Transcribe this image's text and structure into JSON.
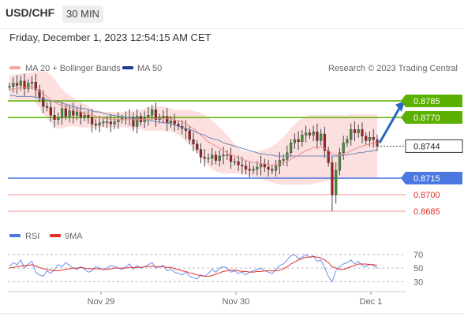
{
  "header": {
    "symbol": "USD/CHF",
    "timeframe": "30 MIN",
    "datetime": "Friday, December 1, 2023 12:54:15 AM CET"
  },
  "legend": {
    "ma20_bb": "MA 20 + Bollinger Bands",
    "ma50": "MA 50",
    "rsi": "RSI",
    "ma9": "9MA",
    "credit": "Research © 2023 Trading Central"
  },
  "colors": {
    "green": "#5cb000",
    "blue": "#4a78e0",
    "red": "#e03030",
    "salmon": "#f4a7a7",
    "band_fill": "#fbd5d5",
    "navy": "#1a3d8f",
    "candle_up": "#4a8f3a",
    "candle_down": "#a02020"
  },
  "chart_data": {
    "type": "candlestick",
    "symbol": "USD/CHF",
    "timeframe": "30 MIN",
    "xticks": [
      "Nov 29",
      "Nov 30",
      "Dec 1"
    ],
    "ylim": [
      0.8675,
      0.8805
    ],
    "current_price": 0.8744,
    "levels": [
      {
        "label": "0.8785",
        "value": 0.8785,
        "color": "#5cb000",
        "kind": "resistance"
      },
      {
        "label": "0.8770",
        "value": 0.877,
        "color": "#5cb000",
        "kind": "resistance"
      },
      {
        "label": "0.8715",
        "value": 0.8715,
        "color": "#4a78e0",
        "kind": "support"
      },
      {
        "label": "0.8700",
        "value": 0.87,
        "color": "#e03030",
        "kind": "support"
      },
      {
        "label": "0.8685",
        "value": 0.8685,
        "color": "#e03030",
        "kind": "support"
      }
    ],
    "price_series": [
      0.8798,
      0.8801,
      0.8799,
      0.8803,
      0.8796,
      0.8801,
      0.8802,
      0.8795,
      0.8788,
      0.878,
      0.8779,
      0.8772,
      0.8768,
      0.877,
      0.8778,
      0.8771,
      0.8776,
      0.8772,
      0.8775,
      0.877,
      0.8772,
      0.877,
      0.8764,
      0.8763,
      0.8765,
      0.8766,
      0.8766,
      0.8764,
      0.8766,
      0.8768,
      0.8769,
      0.877,
      0.877,
      0.8762,
      0.8771,
      0.8766,
      0.877,
      0.8772,
      0.8777,
      0.8768,
      0.877,
      0.8771,
      0.8765,
      0.8767,
      0.8764,
      0.8762,
      0.876,
      0.8758,
      0.875,
      0.8746,
      0.8741,
      0.8734,
      0.8733,
      0.8733,
      0.8736,
      0.8731,
      0.8735,
      0.8736,
      0.8736,
      0.873,
      0.873,
      0.8727,
      0.8726,
      0.8723,
      0.8722,
      0.8723,
      0.8725,
      0.8728,
      0.8725,
      0.8723,
      0.8722,
      0.8726,
      0.8731,
      0.8732,
      0.8738,
      0.8747,
      0.875,
      0.8748,
      0.8754,
      0.8756,
      0.8754,
      0.8757,
      0.8749,
      0.8755,
      0.874,
      0.8729,
      0.87,
      0.8722,
      0.8738,
      0.8747,
      0.875,
      0.8759,
      0.8756,
      0.8759,
      0.8753,
      0.8749,
      0.8752,
      0.875,
      0.8744
    ],
    "ma20_series": [
      0.8795,
      0.8796,
      0.8796,
      0.8797,
      0.8797,
      0.8797,
      0.8797,
      0.8796,
      0.8794,
      0.8791,
      0.8789,
      0.8786,
      0.8784,
      0.8782,
      0.8781,
      0.878,
      0.8779,
      0.8778,
      0.8777,
      0.8775,
      0.8774,
      0.8773,
      0.8772,
      0.8771,
      0.877,
      0.8769,
      0.8769,
      0.8768,
      0.8768,
      0.8768,
      0.8768,
      0.8768,
      0.8768,
      0.8768,
      0.8768,
      0.8768,
      0.8768,
      0.8768,
      0.8769,
      0.8769,
      0.8769,
      0.8769,
      0.8769,
      0.8769,
      0.8768,
      0.8767,
      0.8766,
      0.8764,
      0.8762,
      0.876,
      0.8757,
      0.8754,
      0.8751,
      0.8748,
      0.8746,
      0.8744,
      0.8742,
      0.874,
      0.8738,
      0.8736,
      0.8735,
      0.8733,
      0.8732,
      0.8731,
      0.873,
      0.8729,
      0.8729,
      0.8728,
      0.8728,
      0.8727,
      0.8727,
      0.8727,
      0.8728,
      0.8729,
      0.873,
      0.8732,
      0.8734,
      0.8736,
      0.8738,
      0.874,
      0.8741,
      0.8743,
      0.8743,
      0.8743,
      0.8742,
      0.874,
      0.8737,
      0.8736,
      0.8736,
      0.8737,
      0.8738,
      0.874,
      0.8741,
      0.8743,
      0.8744,
      0.8745,
      0.8746,
      0.8747,
      0.8747
    ],
    "bb_upper": [
      0.8808,
      0.8809,
      0.8809,
      0.881,
      0.881,
      0.881,
      0.8811,
      0.8812,
      0.8812,
      0.8812,
      0.8811,
      0.8809,
      0.8805,
      0.88,
      0.8796,
      0.8793,
      0.879,
      0.8788,
      0.8786,
      0.8784,
      0.8782,
      0.878,
      0.8778,
      0.8777,
      0.8776,
      0.8775,
      0.8775,
      0.8775,
      0.8775,
      0.8775,
      0.8775,
      0.8775,
      0.8776,
      0.8776,
      0.8776,
      0.8777,
      0.8778,
      0.8779,
      0.878,
      0.878,
      0.878,
      0.878,
      0.8779,
      0.8778,
      0.8777,
      0.8777,
      0.8777,
      0.8777,
      0.8777,
      0.8776,
      0.8775,
      0.8774,
      0.8772,
      0.877,
      0.8767,
      0.8764,
      0.8761,
      0.8758,
      0.8754,
      0.875,
      0.8746,
      0.8743,
      0.874,
      0.8739,
      0.8739,
      0.8739,
      0.8739,
      0.874,
      0.8741,
      0.8742,
      0.8744,
      0.8746,
      0.8749,
      0.8752,
      0.8756,
      0.876,
      0.8764,
      0.8767,
      0.8769,
      0.8771,
      0.8772,
      0.8772,
      0.8772,
      0.8772,
      0.8772,
      0.8772,
      0.8772,
      0.8772,
      0.8772,
      0.8772,
      0.8772,
      0.8773,
      0.8773,
      0.8773,
      0.8773,
      0.8773,
      0.8773,
      0.8773,
      0.8773
    ],
    "bb_lower": [
      0.8786,
      0.8786,
      0.8786,
      0.8786,
      0.8786,
      0.8786,
      0.8785,
      0.8783,
      0.8779,
      0.8773,
      0.8769,
      0.8765,
      0.8762,
      0.876,
      0.876,
      0.8761,
      0.8762,
      0.8762,
      0.8762,
      0.8761,
      0.8761,
      0.8761,
      0.8761,
      0.8761,
      0.8761,
      0.8761,
      0.8761,
      0.8761,
      0.8761,
      0.8761,
      0.8761,
      0.8761,
      0.876,
      0.876,
      0.876,
      0.8759,
      0.8758,
      0.8758,
      0.8758,
      0.8758,
      0.8758,
      0.8758,
      0.8758,
      0.8757,
      0.8756,
      0.8754,
      0.8751,
      0.8748,
      0.8745,
      0.8742,
      0.8738,
      0.8734,
      0.873,
      0.8726,
      0.8723,
      0.8721,
      0.872,
      0.8719,
      0.8719,
      0.8719,
      0.8719,
      0.8719,
      0.8719,
      0.8718,
      0.8717,
      0.8716,
      0.8715,
      0.8714,
      0.8713,
      0.8712,
      0.8711,
      0.871,
      0.8709,
      0.8709,
      0.8709,
      0.8709,
      0.8709,
      0.8709,
      0.8709,
      0.8709,
      0.8709,
      0.871,
      0.8711,
      0.8711,
      0.8712,
      0.8713,
      0.8713,
      0.8713,
      0.8714,
      0.8714,
      0.8715,
      0.8715,
      0.8715,
      0.8715,
      0.8715,
      0.8715,
      0.8715,
      0.8715,
      0.8715
    ],
    "ma50_series": [
      0.879,
      0.879,
      0.8789,
      0.8789,
      0.8789,
      0.8789,
      0.8789,
      0.8788,
      0.8787,
      0.8787,
      0.8786,
      0.8785,
      0.8784,
      0.8784,
      0.8783,
      0.8782,
      0.8781,
      0.878,
      0.8779,
      0.8778,
      0.8778,
      0.8777,
      0.8776,
      0.8775,
      0.8775,
      0.8774,
      0.8773,
      0.8772,
      0.8772,
      0.8771,
      0.8771,
      0.877,
      0.877,
      0.8769,
      0.8769,
      0.8768,
      0.8768,
      0.8767,
      0.8767,
      0.8766,
      0.8766,
      0.8765,
      0.8765,
      0.8764,
      0.8763,
      0.8762,
      0.8761,
      0.876,
      0.8759,
      0.8758,
      0.8756,
      0.8755,
      0.8754,
      0.8752,
      0.8751,
      0.875,
      0.8749,
      0.8747,
      0.8746,
      0.8745,
      0.8744,
      0.8743,
      0.8742,
      0.8741,
      0.874,
      0.8739,
      0.8738,
      0.8737,
      0.8737,
      0.8736,
      0.8736,
      0.8735,
      0.8735,
      0.8735,
      0.8735,
      0.8735,
      0.8735,
      0.8735,
      0.8735,
      0.8735,
      0.8735,
      0.8735,
      0.8735,
      0.8735,
      0.8735,
      0.8735,
      0.8735,
      0.8735,
      0.8735,
      0.8736,
      0.8736,
      0.8737,
      0.8737,
      0.8738,
      0.8738,
      0.8739,
      0.8739,
      0.874,
      0.874
    ],
    "rsi": {
      "yticks": [
        70,
        50,
        30
      ],
      "ylim": [
        20,
        78
      ],
      "rsi_series": [
        52,
        58,
        55,
        62,
        50,
        56,
        60,
        44,
        40,
        38,
        46,
        42,
        48,
        55,
        52,
        58,
        54,
        50,
        48,
        52,
        48,
        44,
        46,
        52,
        50,
        48,
        50,
        54,
        52,
        50,
        48,
        52,
        56,
        48,
        54,
        50,
        52,
        55,
        58,
        50,
        52,
        54,
        46,
        48,
        44,
        42,
        40,
        44,
        38,
        36,
        34,
        40,
        38,
        42,
        48,
        44,
        50,
        52,
        50,
        44,
        46,
        42,
        44,
        40,
        44,
        46,
        48,
        50,
        46,
        44,
        42,
        48,
        54,
        56,
        62,
        68,
        70,
        64,
        66,
        70,
        66,
        68,
        60,
        62,
        50,
        38,
        30,
        46,
        52,
        56,
        58,
        62,
        56,
        60,
        54,
        52,
        56,
        54,
        50
      ],
      "ma9_series": [
        50,
        51,
        52,
        53,
        54,
        54,
        55,
        53,
        51,
        49,
        48,
        47,
        46,
        46,
        47,
        48,
        49,
        50,
        50,
        51,
        50,
        49,
        49,
        49,
        49,
        48,
        48,
        49,
        50,
        50,
        50,
        50,
        51,
        51,
        51,
        51,
        52,
        52,
        53,
        52,
        52,
        52,
        51,
        51,
        49,
        48,
        46,
        45,
        43,
        42,
        40,
        39,
        38,
        38,
        39,
        41,
        43,
        45,
        46,
        47,
        47,
        46,
        45,
        45,
        44,
        44,
        45,
        45,
        46,
        46,
        46,
        46,
        47,
        49,
        52,
        56,
        59,
        62,
        64,
        66,
        66,
        67,
        66,
        65,
        62,
        58,
        52,
        50,
        48,
        48,
        50,
        52,
        54,
        56,
        56,
        56,
        55,
        55,
        54
      ]
    }
  }
}
